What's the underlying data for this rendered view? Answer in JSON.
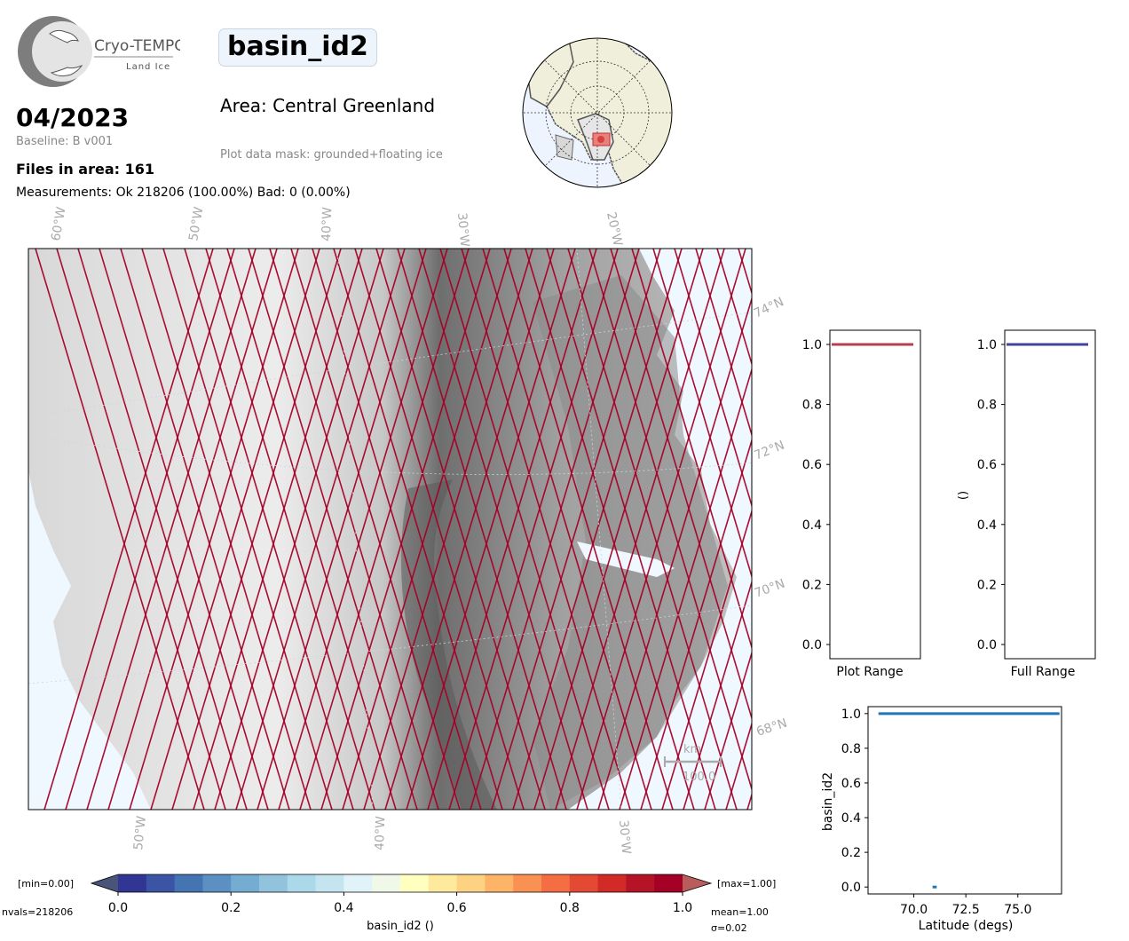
{
  "header": {
    "logo_name": "Cryo-TEMPO",
    "logo_sub": "Land Ice",
    "variable_title": "basin_id2",
    "date": "04/2023",
    "baseline": "Baseline: B v001",
    "files_in_area": "Files in area: 161",
    "measurements": "Measurements: Ok 218206 (100.00%) Bad: 0 (0.00%)",
    "area": "Area: Central Greenland",
    "mask": "Plot data mask: grounded+floating ice"
  },
  "map": {
    "top_lon_labels": [
      "60°W",
      "50°W",
      "40°W",
      "30°W",
      "20°W"
    ],
    "bottom_lon_labels": [
      "50°W",
      "40°W",
      "30°W"
    ],
    "lat_labels": [
      "74°N",
      "72°N",
      "70°N",
      "68°N"
    ],
    "scale_unit": "km",
    "scale_value": "100.0",
    "track_color": "#a50026",
    "ocean_color": "#f0f8ff"
  },
  "colorbar": {
    "label": "basin_id2 ()",
    "ticks": [
      "0.0",
      "0.2",
      "0.4",
      "0.6",
      "0.8",
      "1.0"
    ],
    "min_label": "[min=0.00]",
    "max_label": "[max=1.00]",
    "nvals": "nvals=218206",
    "mean": "mean=1.00",
    "sigma": "σ=0.02",
    "colors": [
      "#313695",
      "#3b54a4",
      "#4574b3",
      "#5c90c2",
      "#74add1",
      "#91c3dd",
      "#abd9e9",
      "#c4e5f0",
      "#e0f3f8",
      "#f0f9e8",
      "#ffffbf",
      "#fee99d",
      "#fed283",
      "#fdb466",
      "#f99153",
      "#f46d43",
      "#e34933",
      "#d22b27",
      "#b51326",
      "#a50026"
    ],
    "under_color": "#4a5478",
    "over_color": "#b85c5c"
  },
  "chart_data": [
    {
      "type": "line",
      "title": "",
      "xlabel": "Plot Range",
      "ylabel": "",
      "ylim": [
        0,
        1
      ],
      "yticks": [
        "0.0",
        "0.2",
        "0.4",
        "0.6",
        "0.8",
        "1.0"
      ],
      "series": [
        {
          "values": [
            1.0
          ],
          "color": "#b5404d"
        }
      ]
    },
    {
      "type": "line",
      "title": "",
      "xlabel": "Full Range",
      "ylabel": "()",
      "ylim": [
        0,
        1
      ],
      "yticks": [
        "0.0",
        "0.2",
        "0.4",
        "0.6",
        "0.8",
        "1.0"
      ],
      "series": [
        {
          "values": [
            1.0
          ],
          "color": "#3c4596"
        }
      ]
    },
    {
      "type": "scatter",
      "title": "",
      "xlabel": "Latitude (degs)",
      "ylabel": "basin_id2",
      "xlim": [
        67.8,
        77.1
      ],
      "ylim": [
        -0.04,
        1.04
      ],
      "xticks": [
        "70.0",
        "72.5",
        "75.0"
      ],
      "yticks": [
        "0.0",
        "0.2",
        "0.4",
        "0.6",
        "0.8",
        "1.0"
      ],
      "color": "#1f77b4",
      "series": [
        {
          "x": [
            68.3,
            77.0
          ],
          "y": [
            1.0,
            1.0
          ],
          "kind": "line"
        },
        {
          "x": [
            70.9,
            71.1
          ],
          "y": [
            0.0,
            0.0
          ],
          "kind": "line"
        }
      ]
    }
  ]
}
